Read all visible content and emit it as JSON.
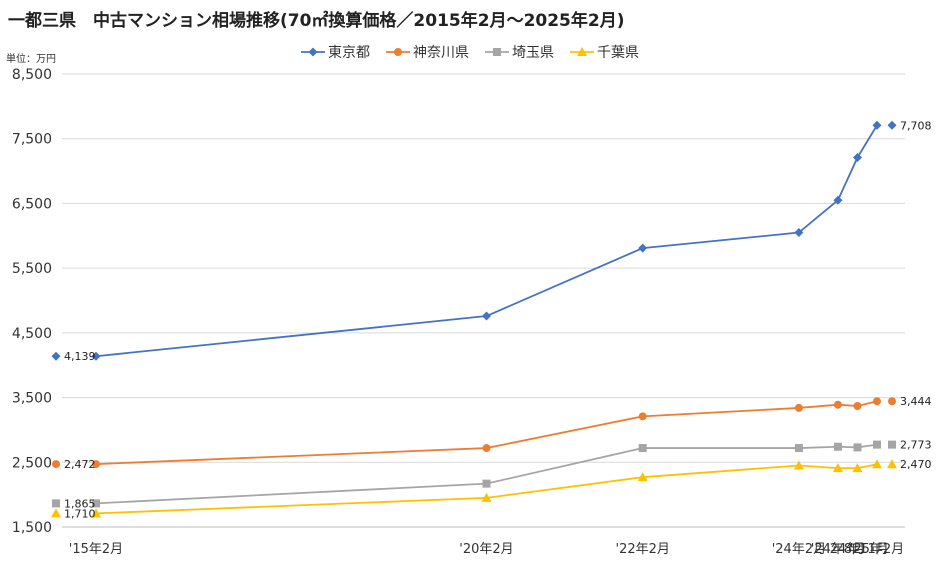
{
  "title": "一都三県　中古マンション相場推移(70㎡換算価格／2015年2月～2025年2月)",
  "unit_label": "単位：万円",
  "chart_data": {
    "type": "line",
    "title": "一都三県　中古マンション相場推移(70㎡換算価格／2015年2月～2025年2月)",
    "ylabel": "単位：万円",
    "xlabel": "",
    "ylim": [
      1500,
      8500
    ],
    "yticks": [
      1500,
      2500,
      3500,
      4500,
      5500,
      6500,
      7500,
      8500
    ],
    "ytick_labels": [
      "1,500",
      "2,500",
      "3,500",
      "4,500",
      "5,500",
      "6,500",
      "7,500",
      "8,500"
    ],
    "x": [
      2015.0833,
      2020.0833,
      2022.0833,
      2024.0833,
      2024.5833,
      2024.8333,
      2025.0833
    ],
    "x_tick_values": [
      2015.0833,
      2020.0833,
      2022.0833,
      2024.0833,
      2024.5833,
      2024.8333,
      2025.0833
    ],
    "x_tick_labels": [
      "'15年2月",
      "'20年2月",
      "'22年2月",
      "'24年2月",
      "'24年8月",
      "'24年11月",
      "'25年2月"
    ],
    "grid": "horizontal",
    "legend_position": "top-center",
    "series": [
      {
        "name": "東京都",
        "color": "#4472C4",
        "marker": "diamond",
        "values": [
          4139,
          4760,
          5810,
          6050,
          6550,
          7210,
          7708
        ],
        "start_label": "4,139",
        "end_label": "7,708"
      },
      {
        "name": "神奈川県",
        "color": "#ED7D31",
        "marker": "circle",
        "values": [
          2472,
          2720,
          3210,
          3340,
          3390,
          3370,
          3444
        ],
        "start_label": "2,472",
        "end_label": "3,444"
      },
      {
        "name": "埼玉県",
        "color": "#A5A5A5",
        "marker": "square",
        "values": [
          1865,
          2170,
          2720,
          2720,
          2740,
          2730,
          2773
        ],
        "start_label": "1,865",
        "end_label": "2,773"
      },
      {
        "name": "千葉県",
        "color": "#FFC000",
        "marker": "triangle",
        "values": [
          1710,
          1950,
          2270,
          2450,
          2410,
          2410,
          2470
        ],
        "start_label": "1,710",
        "end_label": "2,470"
      }
    ]
  }
}
